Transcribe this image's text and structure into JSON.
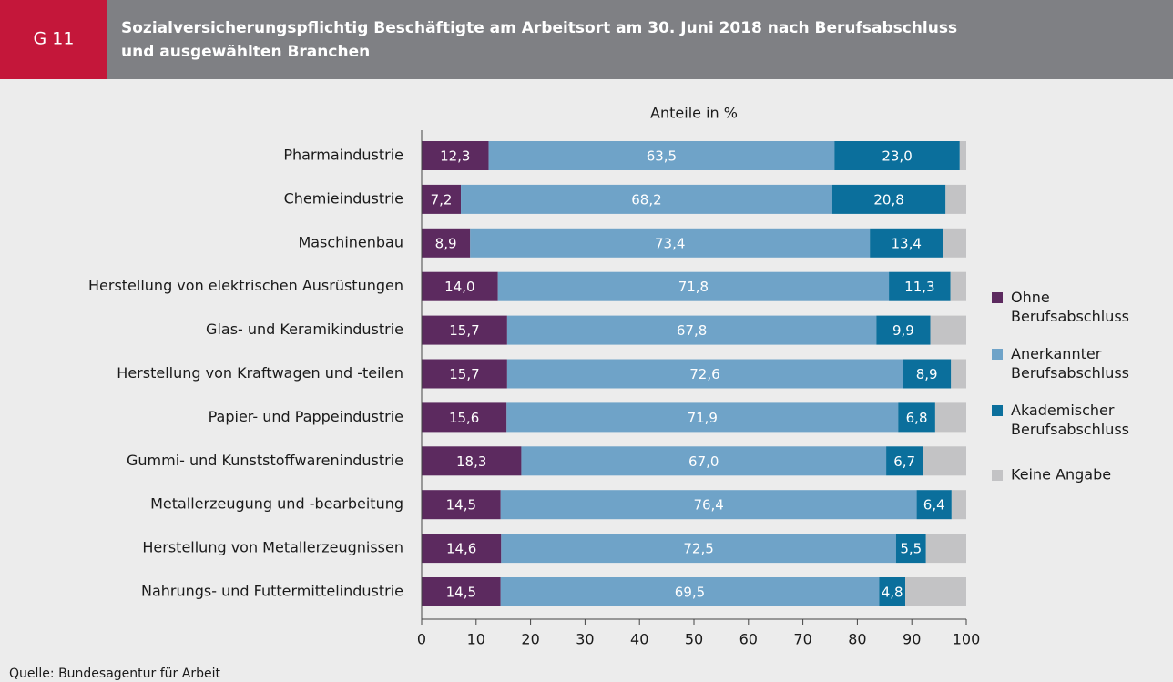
{
  "header": {
    "badge": "G 11",
    "title": [
      "Sozialversicherungspflichtig Beschäftigte am Arbeitsort am 30. Juni 2018 nach Berufsabschluss",
      "und ausgewählten Branchen"
    ]
  },
  "chart_data": {
    "type": "stacked-bar-horizontal",
    "axis_title": "Anteile in %",
    "categories": [
      "Pharmaindustrie",
      "Chemieindustrie",
      "Maschinenbau",
      "Herstellung von elektrischen Ausrüstungen",
      "Glas- und Keramikindustrie",
      "Herstellung von Kraftwagen und -teilen",
      "Papier- und Pappeindustrie",
      "Gummi- und Kunststoffwarenindustrie",
      "Metallerzeugung und -bearbeitung",
      "Herstellung von Metallerzeugnissen",
      "Nahrungs- und Futtermittelindustrie"
    ],
    "series": [
      {
        "name": "Ohne Berufsabschluss",
        "color": "#5c2a5f",
        "values": [
          12.3,
          7.2,
          8.9,
          14.0,
          15.7,
          15.7,
          15.6,
          18.3,
          14.5,
          14.6,
          14.5
        ],
        "value_labels": [
          "12,3",
          "7,2",
          "8,9",
          "14,0",
          "15,7",
          "15,7",
          "15,6",
          "18,3",
          "14,5",
          "14,6",
          "14,5"
        ]
      },
      {
        "name": "Anerkannter Berufsabschluss",
        "color": "#6fa3c8",
        "values": [
          63.5,
          68.2,
          73.4,
          71.8,
          67.8,
          72.6,
          71.9,
          67.0,
          76.4,
          72.5,
          69.5
        ],
        "value_labels": [
          "63,5",
          "68,2",
          "73,4",
          "71,8",
          "67,8",
          "72,6",
          "71,9",
          "67,0",
          "76,4",
          "72,5",
          "69,5"
        ]
      },
      {
        "name": "Akademischer Berufsabschluss",
        "color": "#0b6f9c",
        "values": [
          23.0,
          20.8,
          13.4,
          11.3,
          9.9,
          8.9,
          6.8,
          6.7,
          6.4,
          5.5,
          4.8
        ],
        "value_labels": [
          "23,0",
          "20,8",
          "13,4",
          "11,3",
          "9,9",
          "8,9",
          "6,8",
          "6,7",
          "6,4",
          "5,5",
          "4,8"
        ]
      },
      {
        "name": "Keine Angabe",
        "color": "#c3c3c5",
        "values": [
          1.2,
          3.8,
          4.3,
          2.9,
          6.6,
          2.8,
          5.7,
          8.0,
          2.7,
          7.4,
          11.2
        ]
      }
    ],
    "xlim": [
      0,
      100
    ],
    "xticks": [
      0,
      10,
      20,
      30,
      40,
      50,
      60,
      70,
      80,
      90,
      100
    ],
    "source": "Quelle: Bundesagentur für Arbeit"
  }
}
